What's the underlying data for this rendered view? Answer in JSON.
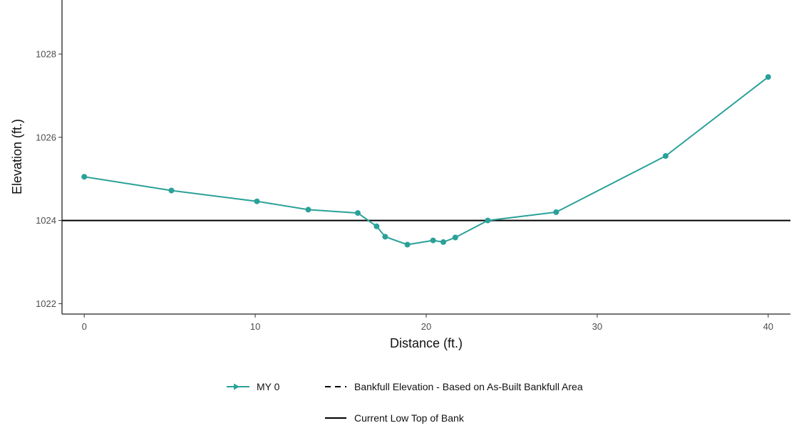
{
  "chart_data": {
    "type": "line",
    "xlabel": "Distance (ft.)",
    "ylabel": "Elevation (ft.)",
    "xlim": [
      -1.3,
      41.3
    ],
    "ylim": [
      1021.75,
      1029.3
    ],
    "x_ticks": [
      0,
      10,
      20,
      30,
      40
    ],
    "y_ticks": [
      1022,
      1024,
      1026,
      1028
    ],
    "grid": false,
    "legend_position": "bottom",
    "series": [
      {
        "name": "MY 0",
        "style": "line-with-markers",
        "color": "#2aa198",
        "points": [
          [
            0,
            1025.05
          ],
          [
            5.1,
            1024.72
          ],
          [
            10.1,
            1024.46
          ],
          [
            13.1,
            1024.26
          ],
          [
            16.0,
            1024.18
          ],
          [
            17.1,
            1023.86
          ],
          [
            17.6,
            1023.61
          ],
          [
            18.9,
            1023.42
          ],
          [
            20.4,
            1023.52
          ],
          [
            21.0,
            1023.48
          ],
          [
            21.7,
            1023.59
          ],
          [
            23.6,
            1024.0
          ],
          [
            27.6,
            1024.2
          ],
          [
            34.0,
            1025.55
          ],
          [
            40.0,
            1027.45
          ]
        ]
      },
      {
        "name": "Bankfull Elevation - Based on As-Built Bankfull Area",
        "style": "dashed",
        "color": "#000000",
        "y": null
      },
      {
        "name": "Current Low Top of Bank",
        "style": "solid",
        "color": "#000000",
        "y": 1024.0
      }
    ]
  }
}
